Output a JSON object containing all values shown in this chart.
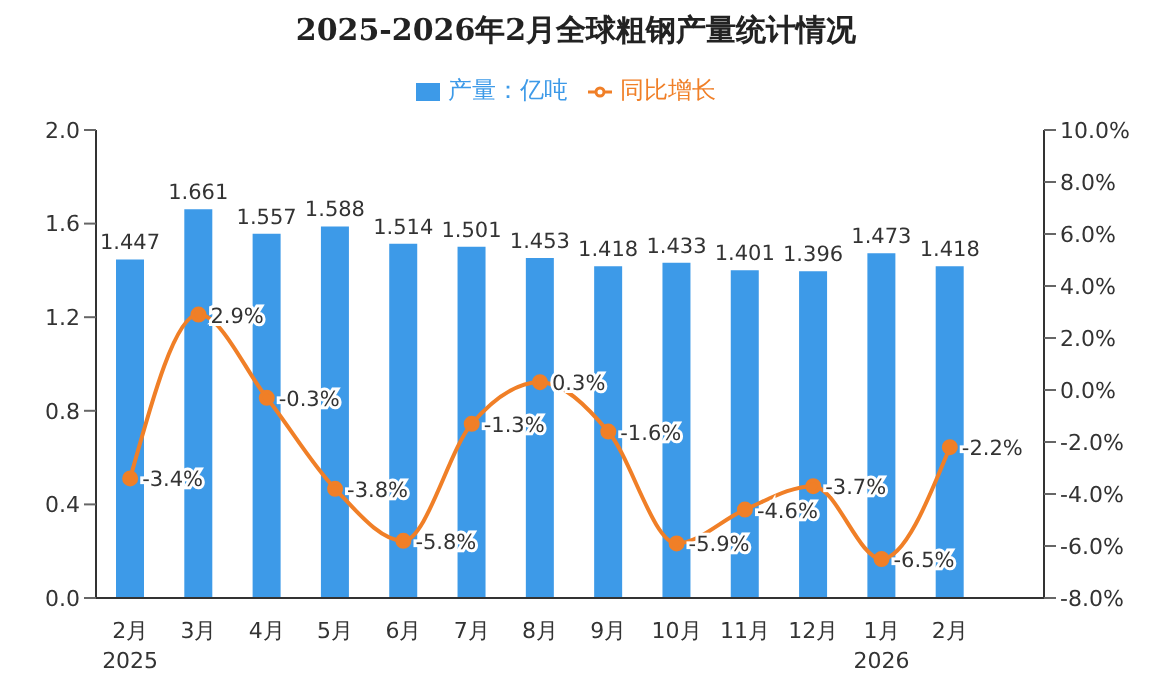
{
  "chart_data": {
    "type": "bar",
    "title": "2025-2026年2月全球粗钢产量统计情况",
    "categories": [
      "2月\n2025",
      "3月",
      "4月",
      "5月",
      "6月",
      "7月",
      "8月",
      "9月",
      "10月",
      "11月",
      "12月",
      "1月\n2026",
      "2月"
    ],
    "series": [
      {
        "name": "产量：亿吨",
        "color": "#3d9ae8",
        "values": [
          1.447,
          1.661,
          1.557,
          1.588,
          1.514,
          1.501,
          1.453,
          1.418,
          1.433,
          1.401,
          1.396,
          1.473,
          1.418
        ],
        "value_labels": [
          "1.447",
          "1.661",
          "1.557",
          "1.588",
          "1.514",
          "1.501",
          "1.453",
          "1.418",
          "1.433",
          "1.401",
          "1.396",
          "1.473",
          "1.418"
        ]
      },
      {
        "name": "同比增长",
        "type": "line",
        "axis": "y2",
        "color": "#f07f27",
        "marker": "circle",
        "values": [
          -3.4,
          2.9,
          -0.3,
          -3.8,
          -5.8,
          -1.3,
          0.3,
          -1.6,
          -5.9,
          -4.6,
          -3.7,
          -6.5,
          -2.2
        ],
        "value_labels": [
          "-3.4%",
          "2.9%",
          "-0.3%",
          "-3.8%",
          "-5.8%",
          "-1.3%",
          "0.3%",
          "-1.6%",
          "-5.9%",
          "-4.6%",
          "-3.7%",
          "-6.5%",
          "-2.2%"
        ]
      }
    ],
    "ylim": [
      0,
      2
    ],
    "yticks": [
      {
        "value": 0,
        "label": "0.0"
      },
      {
        "value": 0.4,
        "label": "0.4"
      },
      {
        "value": 0.8,
        "label": "0.8"
      },
      {
        "value": 1.2,
        "label": "1.2"
      },
      {
        "value": 1.6,
        "label": "1.6"
      },
      {
        "value": 2,
        "label": "2.0"
      }
    ],
    "y2lim": [
      -8,
      10
    ],
    "y2ticks": [
      {
        "value": -8,
        "label": "-8.0%"
      },
      {
        "value": -6,
        "label": "-6.0%"
      },
      {
        "value": -4,
        "label": "-4.0%"
      },
      {
        "value": -2,
        "label": "-2.0%"
      },
      {
        "value": 0,
        "label": "0.0%"
      },
      {
        "value": 2,
        "label": "2.0%"
      },
      {
        "value": 4,
        "label": "4.0%"
      },
      {
        "value": 6,
        "label": "6.0%"
      },
      {
        "value": 8,
        "label": "8.0%"
      },
      {
        "value": 10,
        "label": "10.0%"
      }
    ],
    "legend": "top",
    "grid": false
  }
}
